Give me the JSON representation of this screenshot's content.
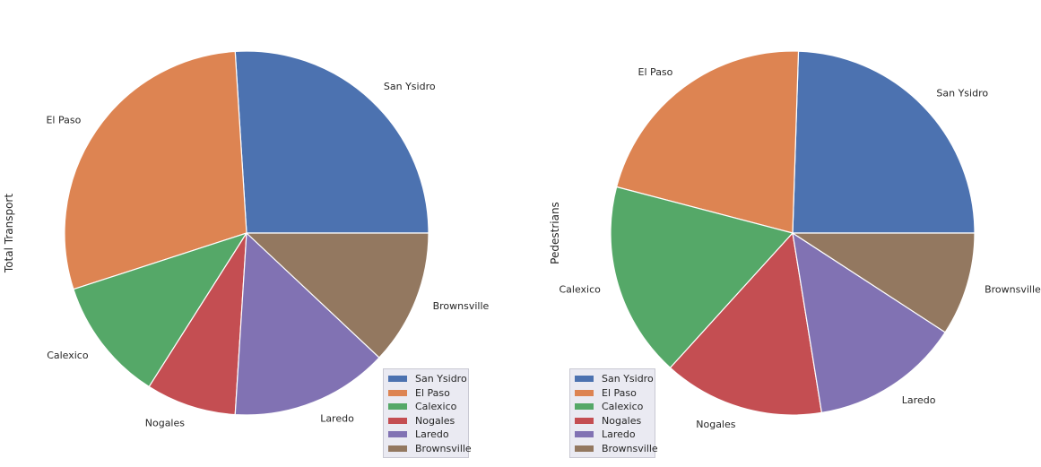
{
  "chart_data": [
    {
      "type": "pie",
      "ylabel": "Total Transport",
      "categories": [
        "San Ysidro",
        "El Paso",
        "Calexico",
        "Nogales",
        "Laredo",
        "Brownsville"
      ],
      "values": [
        26,
        29,
        11,
        8,
        14,
        12
      ],
      "legend": "lower-right",
      "start_angle": "0° (3 o'clock), counter-clockwise"
    },
    {
      "type": "pie",
      "ylabel": "Pedestrians",
      "categories": [
        "San Ysidro",
        "El Paso",
        "Calexico",
        "Nogales",
        "Laredo",
        "Brownsville"
      ],
      "values": [
        24,
        21,
        17,
        14,
        13,
        9
      ],
      "legend": "lower-left",
      "start_angle": "0° (3 o'clock), counter-clockwise"
    }
  ],
  "colors": [
    "#4c72b0",
    "#dd8452",
    "#55a868",
    "#c44e52",
    "#8172b3",
    "#937860"
  ]
}
